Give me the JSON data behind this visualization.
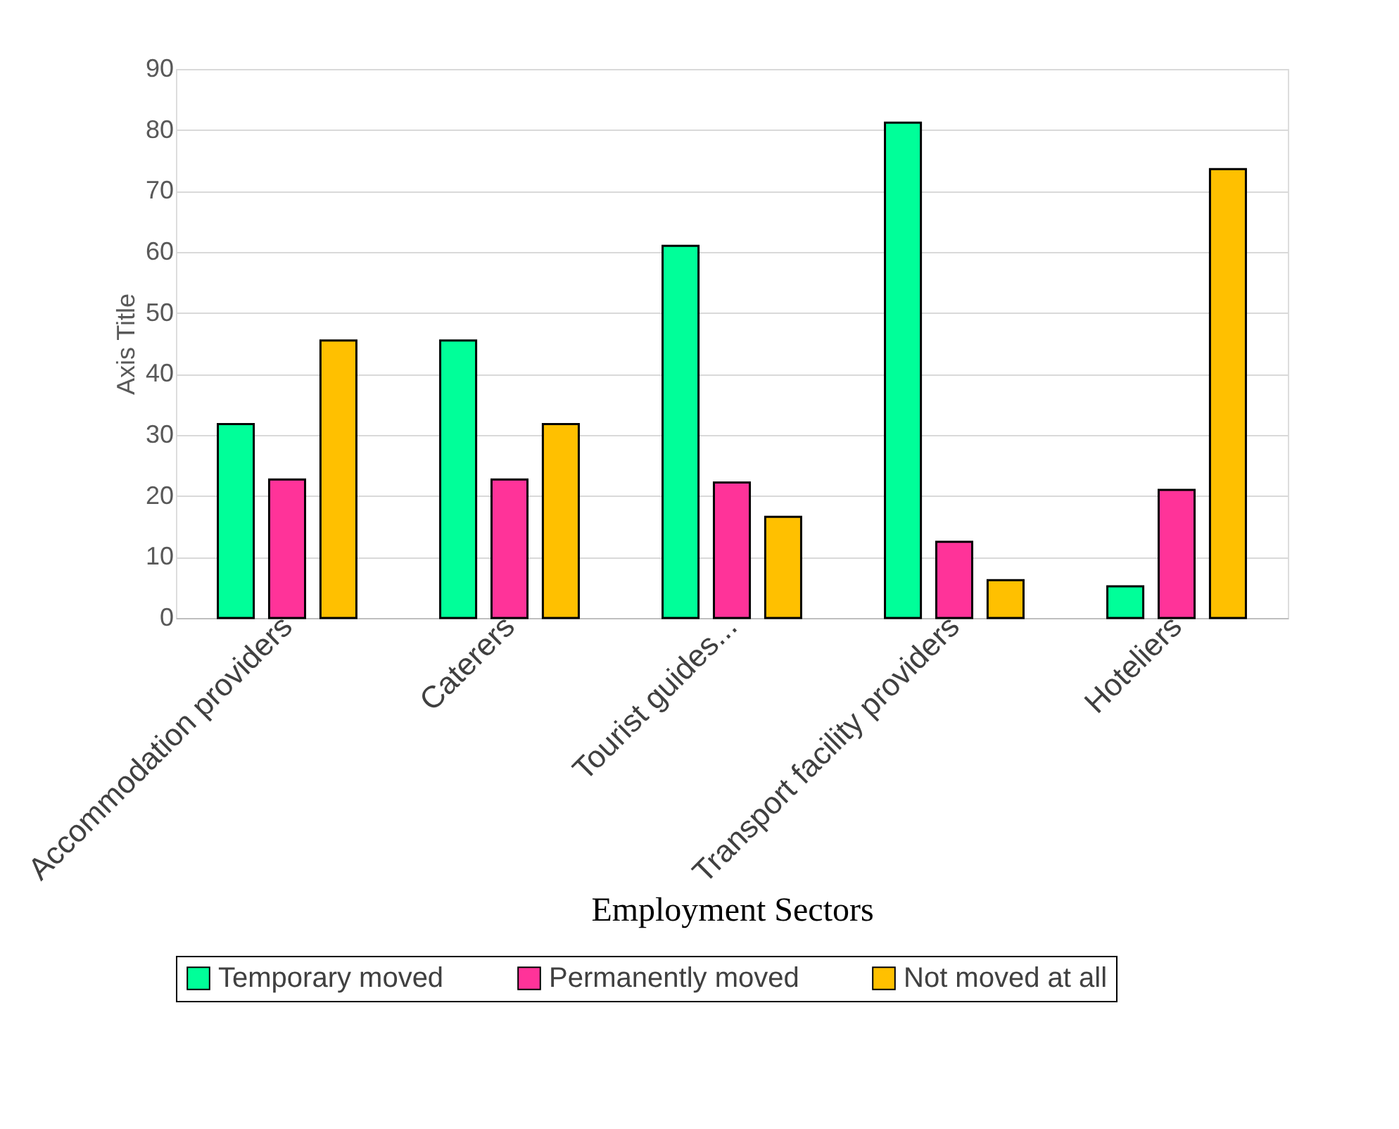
{
  "chart_data": {
    "type": "bar",
    "xlabel": "Employment Sectors",
    "ylabel": "Axis Title",
    "categories": [
      "Accommodation providers",
      "Caterers",
      "Tourist guides...",
      "Transport facility providers",
      "Hoteliers"
    ],
    "series": [
      {
        "name": "Temporary moved",
        "color": "#00ff99",
        "values": [
          31.8,
          45.5,
          61,
          81.2,
          5.2
        ]
      },
      {
        "name": "Permanently moved",
        "color": "#ff3399",
        "values": [
          22.7,
          22.7,
          22.2,
          12.5,
          21
        ]
      },
      {
        "name": "Not moved at all",
        "color": "#ffc000",
        "values": [
          45.5,
          31.8,
          16.6,
          6.2,
          73.6
        ]
      }
    ],
    "ylim": [
      0,
      90
    ],
    "yticks": [
      0,
      10,
      20,
      30,
      40,
      50,
      60,
      70,
      80,
      90
    ],
    "grid": "y",
    "legend": "bottom"
  }
}
